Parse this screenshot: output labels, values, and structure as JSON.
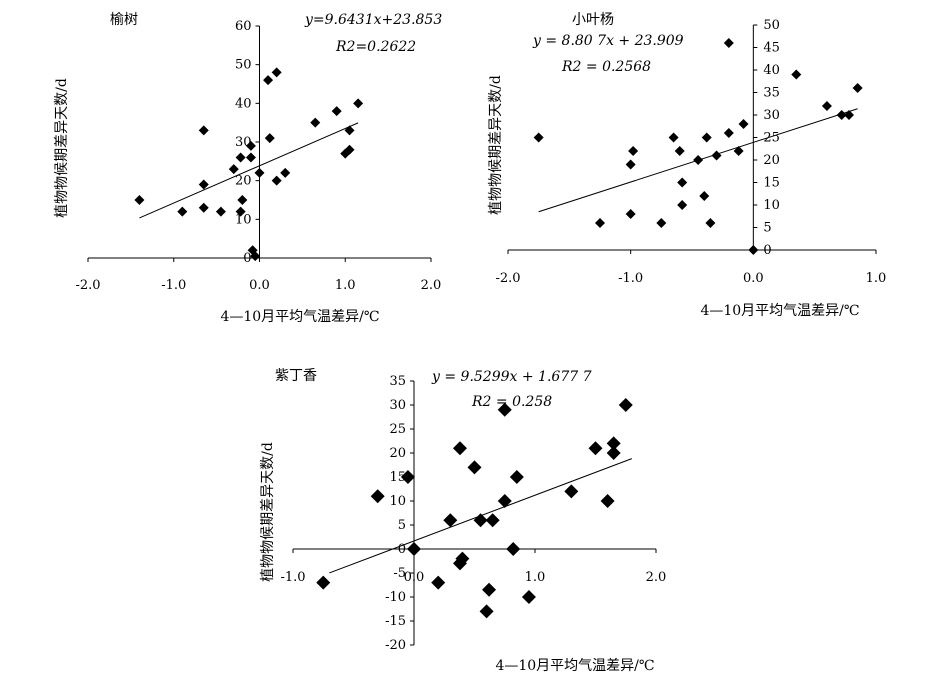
{
  "chart_data": [
    {
      "type": "scatter",
      "title": "榆树",
      "xlabel": "4—10月平均气温差异/℃",
      "ylabel": "植物物候期差异天数/d",
      "equation": {
        "line1": "y=9.6431x+23.853",
        "line2": "R2=0.2622"
      },
      "xlim": [
        -2.0,
        2.0
      ],
      "ylim": [
        0,
        60
      ],
      "xticks": [
        "-2.0",
        "-1.0",
        "0.0",
        "1.0",
        "2.0"
      ],
      "yticks": [
        "0",
        "10",
        "20",
        "30",
        "40",
        "50",
        "60"
      ],
      "trend": {
        "slope": 9.6431,
        "intercept": 23.853,
        "x_range": [
          -1.4,
          1.15
        ]
      },
      "points": [
        [
          -1.4,
          15
        ],
        [
          -0.9,
          12
        ],
        [
          -0.65,
          13
        ],
        [
          -0.65,
          19
        ],
        [
          -0.65,
          33
        ],
        [
          -0.45,
          12
        ],
        [
          -0.3,
          23
        ],
        [
          -0.22,
          26
        ],
        [
          -0.22,
          12
        ],
        [
          -0.2,
          15
        ],
        [
          -0.1,
          29
        ],
        [
          -0.1,
          26
        ],
        [
          -0.08,
          2
        ],
        [
          -0.05,
          0.5
        ],
        [
          0.0,
          22
        ],
        [
          0.1,
          46
        ],
        [
          0.12,
          31
        ],
        [
          0.2,
          48
        ],
        [
          0.2,
          20
        ],
        [
          0.3,
          22
        ],
        [
          0.65,
          35
        ],
        [
          0.9,
          38
        ],
        [
          1.0,
          27
        ],
        [
          1.05,
          28
        ],
        [
          1.05,
          33
        ],
        [
          1.15,
          40
        ]
      ]
    },
    {
      "type": "scatter",
      "title": "小叶杨",
      "xlabel": "4—10月平均气温差异/℃",
      "ylabel": "植物物候期差异天数/d",
      "equation": {
        "line1": "y = 8.80 7x + 23.909",
        "line2": "R2 = 0.2568"
      },
      "xlim": [
        -2.0,
        1.0
      ],
      "ylim": [
        0,
        50
      ],
      "xticks": [
        "-2.0",
        "-1.0",
        "0.0",
        "1.0"
      ],
      "yticks": [
        "0",
        "5",
        "10",
        "15",
        "20",
        "25",
        "30",
        "35",
        "40",
        "45",
        "50"
      ],
      "trend": {
        "slope": 8.807,
        "intercept": 23.909,
        "x_range": [
          -1.75,
          0.85
        ]
      },
      "points": [
        [
          -1.75,
          25
        ],
        [
          -1.25,
          6
        ],
        [
          -1.0,
          8
        ],
        [
          -1.0,
          19
        ],
        [
          -0.98,
          22
        ],
        [
          -0.75,
          6
        ],
        [
          -0.65,
          25
        ],
        [
          -0.6,
          22
        ],
        [
          -0.58,
          15
        ],
        [
          -0.58,
          10
        ],
        [
          -0.45,
          20
        ],
        [
          -0.4,
          12
        ],
        [
          -0.38,
          25
        ],
        [
          -0.35,
          6
        ],
        [
          -0.3,
          21
        ],
        [
          -0.2,
          26
        ],
        [
          -0.2,
          46
        ],
        [
          -0.12,
          22
        ],
        [
          -0.08,
          28
        ],
        [
          0.0,
          0
        ],
        [
          0.35,
          39
        ],
        [
          0.6,
          32
        ],
        [
          0.72,
          30
        ],
        [
          0.78,
          30
        ],
        [
          0.85,
          36
        ]
      ]
    },
    {
      "type": "scatter",
      "title": "紫丁香",
      "xlabel": "4—10月平均气温差异/℃",
      "ylabel": "植物物候期差异天数/d",
      "equation": {
        "line1": "y = 9.5299x + 1.677 7",
        "line2": "R2 = 0.258"
      },
      "xlim": [
        -1.0,
        2.0
      ],
      "ylim": [
        -20,
        35
      ],
      "xticks": [
        "-1.0",
        "0.0",
        "1.0",
        "2.0"
      ],
      "yticks": [
        "-20",
        "-15",
        "-10",
        "-5",
        "0",
        "5",
        "10",
        "15",
        "20",
        "25",
        "30",
        "35"
      ],
      "trend": {
        "slope": 9.5299,
        "intercept": 1.6777,
        "x_range": [
          -0.7,
          1.8
        ]
      },
      "points": [
        [
          -0.75,
          -7
        ],
        [
          -0.3,
          11
        ],
        [
          -0.05,
          15
        ],
        [
          0.0,
          0
        ],
        [
          0.2,
          -7
        ],
        [
          0.3,
          6
        ],
        [
          0.38,
          21
        ],
        [
          0.38,
          -3
        ],
        [
          0.4,
          -2
        ],
        [
          0.5,
          17
        ],
        [
          0.55,
          6
        ],
        [
          0.6,
          -13
        ],
        [
          0.62,
          -8.5
        ],
        [
          0.65,
          6
        ],
        [
          0.75,
          10
        ],
        [
          0.75,
          29
        ],
        [
          0.82,
          0
        ],
        [
          0.85,
          15
        ],
        [
          0.95,
          -10
        ],
        [
          1.3,
          12
        ],
        [
          1.5,
          21
        ],
        [
          1.6,
          10
        ],
        [
          1.65,
          22
        ],
        [
          1.65,
          20
        ],
        [
          1.75,
          30
        ]
      ]
    }
  ]
}
